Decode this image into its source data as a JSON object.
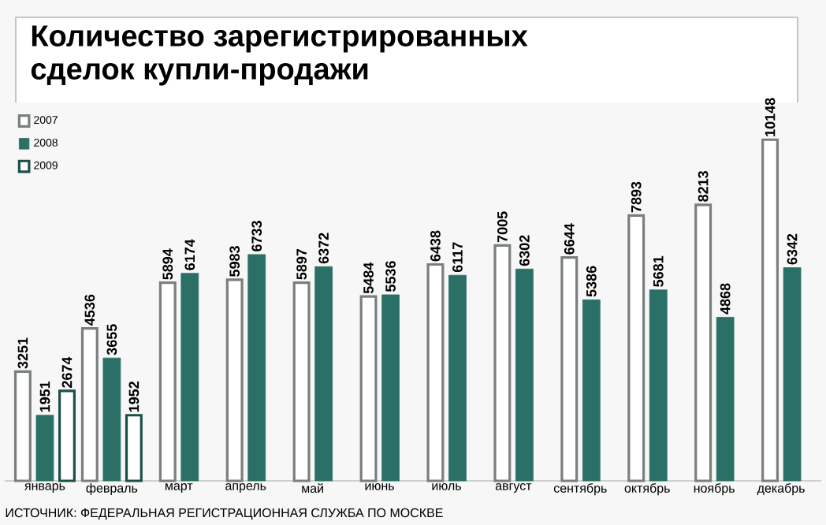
{
  "chart_data": {
    "type": "bar",
    "title": "Количество зарегистрированных\nсделок купли-продажи",
    "categories": [
      "январь",
      "февраль",
      "март",
      "апрель",
      "май",
      "июнь",
      "июль",
      "август",
      "сентябрь",
      "октябрь",
      "ноябрь",
      "декабрь"
    ],
    "series": [
      {
        "name": "2007",
        "color": "#7a7f7e",
        "values": [
          3251,
          4536,
          5894,
          5983,
          5897,
          5484,
          6438,
          7005,
          6644,
          7893,
          8213,
          10148
        ]
      },
      {
        "name": "2008",
        "color": "#2a7066",
        "values": [
          1951,
          3655,
          6174,
          6733,
          6372,
          5536,
          6117,
          6302,
          5386,
          5681,
          4868,
          6342
        ]
      },
      {
        "name": "2009",
        "color": "#1d4f48",
        "values": [
          2674,
          1952,
          null,
          null,
          null,
          null,
          null,
          null,
          null,
          null,
          null,
          null
        ]
      }
    ],
    "tick_labels": "x",
    "data_labels": true,
    "legend": "top left",
    "grid": false,
    "annotations": [
      "ИСТОЧНИК: ФЕДЕРАЛЬНАЯ РЕГИСТРАЦИОННАЯ СЛУЖБА ПО МОСКВЕ"
    ]
  }
}
